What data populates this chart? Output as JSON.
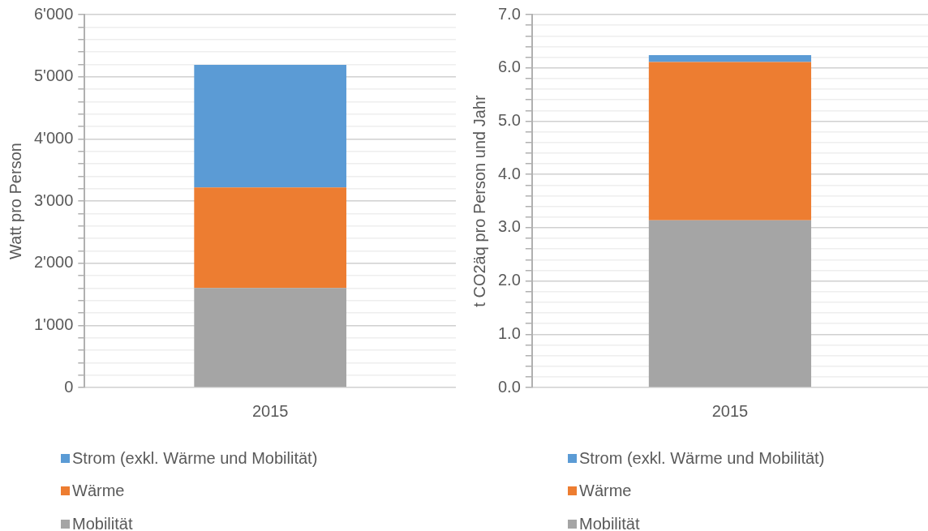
{
  "chart_data": [
    {
      "type": "bar",
      "stacked": true,
      "ylabel": "Watt pro Person",
      "categories": [
        "2015"
      ],
      "grid": true,
      "legend": "bottom",
      "series": [
        {
          "name": "Mobilität",
          "color": "#a5a5a5",
          "values": [
            1600
          ]
        },
        {
          "name": "Wärme",
          "color": "#ed7d31",
          "values": [
            1620
          ]
        },
        {
          "name": "Strom (exkl. Wärme und Mobilität)",
          "color": "#5b9bd5",
          "values": [
            1970
          ]
        }
      ],
      "ylim": [
        0,
        6000
      ],
      "yticks": [
        {
          "value": 0,
          "label": "0"
        },
        {
          "value": 200,
          "label": null
        },
        {
          "value": 400,
          "label": null
        },
        {
          "value": 600,
          "label": null
        },
        {
          "value": 800,
          "label": null
        },
        {
          "value": 1000,
          "label": "1'000"
        },
        {
          "value": 1200,
          "label": null
        },
        {
          "value": 1400,
          "label": null
        },
        {
          "value": 1600,
          "label": null
        },
        {
          "value": 1800,
          "label": null
        },
        {
          "value": 2000,
          "label": "2'000"
        },
        {
          "value": 2200,
          "label": null
        },
        {
          "value": 2400,
          "label": null
        },
        {
          "value": 2600,
          "label": null
        },
        {
          "value": 2800,
          "label": null
        },
        {
          "value": 3000,
          "label": "3'000"
        },
        {
          "value": 3200,
          "label": null
        },
        {
          "value": 3400,
          "label": null
        },
        {
          "value": 3600,
          "label": null
        },
        {
          "value": 3800,
          "label": null
        },
        {
          "value": 4000,
          "label": "4'000"
        },
        {
          "value": 4200,
          "label": null
        },
        {
          "value": 4400,
          "label": null
        },
        {
          "value": 4600,
          "label": null
        },
        {
          "value": 4800,
          "label": null
        },
        {
          "value": 5000,
          "label": "5'000"
        },
        {
          "value": 5200,
          "label": null
        },
        {
          "value": 5400,
          "label": null
        },
        {
          "value": 5600,
          "label": null
        },
        {
          "value": 5800,
          "label": null
        },
        {
          "value": 6000,
          "label": "6'000"
        }
      ]
    },
    {
      "type": "bar",
      "stacked": true,
      "ylabel": "t CO2äq pro Person und Jahr",
      "categories": [
        "2015"
      ],
      "grid": true,
      "legend": "bottom",
      "series": [
        {
          "name": "Mobilität",
          "color": "#a5a5a5",
          "values": [
            3.14
          ]
        },
        {
          "name": "Wärme",
          "color": "#ed7d31",
          "values": [
            2.97
          ]
        },
        {
          "name": "Strom (exkl. Wärme und Mobilität)",
          "color": "#5b9bd5",
          "values": [
            0.13
          ]
        }
      ],
      "ylim": [
        0,
        7
      ],
      "yticks": [
        {
          "value": 0,
          "label": "0.0"
        },
        {
          "value": 0.2,
          "label": null
        },
        {
          "value": 0.4,
          "label": null
        },
        {
          "value": 0.6,
          "label": null
        },
        {
          "value": 0.8,
          "label": null
        },
        {
          "value": 1,
          "label": "1.0"
        },
        {
          "value": 1.2,
          "label": null
        },
        {
          "value": 1.4,
          "label": null
        },
        {
          "value": 1.6,
          "label": null
        },
        {
          "value": 1.8,
          "label": null
        },
        {
          "value": 2,
          "label": "2.0"
        },
        {
          "value": 2.2,
          "label": null
        },
        {
          "value": 2.4,
          "label": null
        },
        {
          "value": 2.6,
          "label": null
        },
        {
          "value": 2.8,
          "label": null
        },
        {
          "value": 3,
          "label": "3.0"
        },
        {
          "value": 3.2,
          "label": null
        },
        {
          "value": 3.4,
          "label": null
        },
        {
          "value": 3.6,
          "label": null
        },
        {
          "value": 3.8,
          "label": null
        },
        {
          "value": 4,
          "label": "4.0"
        },
        {
          "value": 4.2,
          "label": null
        },
        {
          "value": 4.4,
          "label": null
        },
        {
          "value": 4.6,
          "label": null
        },
        {
          "value": 4.8,
          "label": null
        },
        {
          "value": 5,
          "label": "5.0"
        },
        {
          "value": 5.2,
          "label": null
        },
        {
          "value": 5.4,
          "label": null
        },
        {
          "value": 5.6,
          "label": null
        },
        {
          "value": 5.8,
          "label": null
        },
        {
          "value": 6,
          "label": "6.0"
        },
        {
          "value": 6.2,
          "label": null
        },
        {
          "value": 6.4,
          "label": null
        },
        {
          "value": 6.6,
          "label": null
        },
        {
          "value": 6.8,
          "label": null
        },
        {
          "value": 7,
          "label": "7.0"
        }
      ]
    }
  ]
}
